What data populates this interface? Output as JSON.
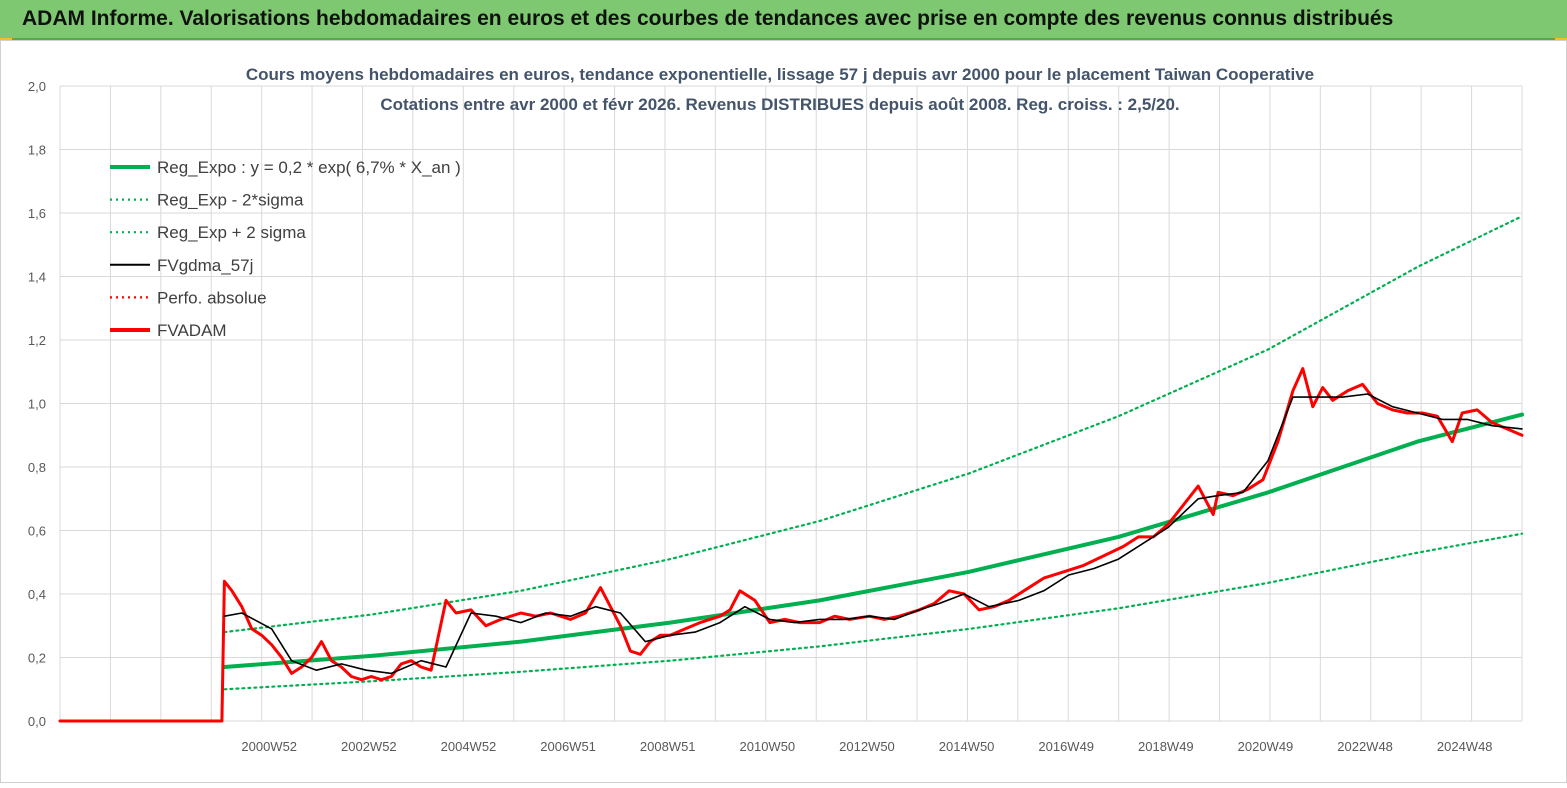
{
  "header": {
    "title": "ADAM Informe. Valorisations hebdomadaires en euros et des courbes de tendances avec prise en compte des revenus connus distribués"
  },
  "colors": {
    "header_bg": "#7dc870",
    "trend": "#00b050",
    "envelope": "#00b050",
    "smoothed": "#000000",
    "perf": "#ff0000",
    "fvadam": "#ff0000",
    "grid": "#d9d9d9"
  },
  "chart_data": {
    "type": "line",
    "title_line1": "Cours moyens hebdomadaires en euros, tendance exponentielle, lissage 57 j depuis avr 2000 pour le placement Taiwan Cooperative",
    "title_line2": "Cotations entre avr 2000 et févr 2026. Revenus DISTRIBUES depuis août 2008. Reg. croiss. : 2,5/20.",
    "xlabel": "",
    "ylabel": "",
    "ylim": [
      0,
      2.0
    ],
    "y_ticks": [
      "0,0",
      "0,2",
      "0,4",
      "0,6",
      "0,8",
      "1,0",
      "1,2",
      "1,4",
      "1,6",
      "1,8",
      "2,0"
    ],
    "x_ticks": [
      "2000W52",
      "2002W52",
      "2004W52",
      "2006W51",
      "2008W51",
      "2010W50",
      "2012W50",
      "2014W50",
      "2016W49",
      "2018W49",
      "2020W49",
      "2022W48",
      "2024W48"
    ],
    "x_range_years": [
      1996.75,
      2026.1
    ],
    "grid": true,
    "legend_position": "top-left",
    "legend": [
      {
        "label": "Reg_Expo : y = 0,2 * exp( 6,7% *  X_an )",
        "style": "solid-thick",
        "color": "#00b050"
      },
      {
        "label": "Reg_Exp - 2*sigma",
        "style": "dotted",
        "color": "#00b050"
      },
      {
        "label": "Reg_Exp + 2 sigma",
        "style": "dotted",
        "color": "#00b050"
      },
      {
        "label": "FVgdma_57j",
        "style": "solid",
        "color": "#000000"
      },
      {
        "label": "Perfo. absolue",
        "style": "dotted",
        "color": "#ff0000"
      },
      {
        "label": "FVADAM",
        "style": "solid-thick",
        "color": "#ff0000"
      }
    ],
    "series": [
      {
        "name": "Reg_Expo : y = 0,2 * exp( 6,7% *  X_an )",
        "x": [
          2000.05,
          2003,
          2006,
          2009,
          2012,
          2015,
          2018,
          2021,
          2024,
          2026.1
        ],
        "values": [
          0.17,
          0.205,
          0.25,
          0.31,
          0.38,
          0.47,
          0.58,
          0.72,
          0.88,
          0.965
        ]
      },
      {
        "name": "Reg_Exp - 2*sigma",
        "x": [
          2000.05,
          2003,
          2006,
          2009,
          2012,
          2015,
          2018,
          2021,
          2024,
          2026.1
        ],
        "values": [
          0.1,
          0.125,
          0.155,
          0.19,
          0.235,
          0.29,
          0.355,
          0.435,
          0.53,
          0.59
        ]
      },
      {
        "name": "Reg_Exp + 2 sigma",
        "x": [
          2000.05,
          2003,
          2006,
          2009,
          2012,
          2015,
          2018,
          2021,
          2024,
          2026.1
        ],
        "values": [
          0.28,
          0.335,
          0.41,
          0.51,
          0.63,
          0.78,
          0.96,
          1.17,
          1.43,
          1.59
        ]
      },
      {
        "name": "FVgdma_57j",
        "x": [
          2000.05,
          2000.4,
          2001.0,
          2001.4,
          2001.9,
          2002.4,
          2002.9,
          2003.4,
          2004.0,
          2004.5,
          2005.0,
          2005.5,
          2006.0,
          2006.5,
          2007.0,
          2007.5,
          2008.0,
          2008.5,
          2009.0,
          2009.5,
          2010.0,
          2010.5,
          2011.0,
          2011.5,
          2012.0,
          2012.5,
          2013.0,
          2013.5,
          2014.0,
          2014.4,
          2014.9,
          2015.4,
          2016.0,
          2016.5,
          2017.0,
          2017.5,
          2018.0,
          2018.5,
          2019.0,
          2019.6,
          2020.0,
          2020.5,
          2021.0,
          2021.5,
          2022.0,
          2022.5,
          2023.0,
          2023.5,
          2024.0,
          2024.5,
          2025.0,
          2025.5,
          2026.1
        ],
        "values": [
          0.33,
          0.34,
          0.29,
          0.19,
          0.16,
          0.18,
          0.16,
          0.15,
          0.19,
          0.17,
          0.34,
          0.33,
          0.31,
          0.34,
          0.33,
          0.36,
          0.34,
          0.25,
          0.27,
          0.28,
          0.31,
          0.36,
          0.32,
          0.31,
          0.32,
          0.32,
          0.33,
          0.32,
          0.35,
          0.37,
          0.4,
          0.36,
          0.38,
          0.41,
          0.46,
          0.48,
          0.51,
          0.56,
          0.61,
          0.7,
          0.71,
          0.72,
          0.82,
          1.02,
          1.02,
          1.02,
          1.03,
          0.99,
          0.97,
          0.95,
          0.95,
          0.93,
          0.92
        ]
      },
      {
        "name": "FVADAM",
        "x": [
          1996.75,
          2000.0,
          2000.05,
          2000.2,
          2000.4,
          2000.6,
          2000.8,
          2001.0,
          2001.2,
          2001.4,
          2001.6,
          2001.8,
          2002.0,
          2002.2,
          2002.4,
          2002.6,
          2002.8,
          2003.0,
          2003.2,
          2003.4,
          2003.6,
          2003.8,
          2004.0,
          2004.2,
          2004.5,
          2004.7,
          2005.0,
          2005.3,
          2005.6,
          2006.0,
          2006.3,
          2006.6,
          2007.0,
          2007.3,
          2007.6,
          2008.0,
          2008.2,
          2008.4,
          2008.6,
          2008.8,
          2009.0,
          2009.3,
          2009.6,
          2010.0,
          2010.2,
          2010.4,
          2010.7,
          2011.0,
          2011.3,
          2011.6,
          2012.0,
          2012.3,
          2012.6,
          2013.0,
          2013.3,
          2013.6,
          2014.0,
          2014.3,
          2014.6,
          2014.9,
          2015.2,
          2015.5,
          2015.8,
          2016.1,
          2016.5,
          2016.9,
          2017.3,
          2017.7,
          2018.1,
          2018.4,
          2018.7,
          2019.0,
          2019.3,
          2019.6,
          2019.9,
          2020.0,
          2020.3,
          2020.6,
          2020.9,
          2021.2,
          2021.5,
          2021.7,
          2021.9,
          2022.1,
          2022.3,
          2022.6,
          2022.9,
          2023.2,
          2023.5,
          2023.8,
          2024.1,
          2024.4,
          2024.7,
          2024.9,
          2025.2,
          2025.5,
          2025.8,
          2026.1
        ],
        "values": [
          0.0,
          0.0,
          0.44,
          0.41,
          0.36,
          0.29,
          0.27,
          0.24,
          0.2,
          0.15,
          0.17,
          0.2,
          0.25,
          0.19,
          0.17,
          0.14,
          0.13,
          0.14,
          0.13,
          0.14,
          0.18,
          0.19,
          0.17,
          0.16,
          0.38,
          0.34,
          0.35,
          0.3,
          0.32,
          0.34,
          0.33,
          0.34,
          0.32,
          0.34,
          0.42,
          0.3,
          0.22,
          0.21,
          0.25,
          0.27,
          0.27,
          0.29,
          0.31,
          0.33,
          0.35,
          0.41,
          0.38,
          0.31,
          0.32,
          0.31,
          0.31,
          0.33,
          0.32,
          0.33,
          0.32,
          0.33,
          0.35,
          0.37,
          0.41,
          0.4,
          0.35,
          0.36,
          0.38,
          0.41,
          0.45,
          0.47,
          0.49,
          0.52,
          0.55,
          0.58,
          0.58,
          0.62,
          0.68,
          0.74,
          0.65,
          0.72,
          0.71,
          0.73,
          0.76,
          0.88,
          1.04,
          1.11,
          0.99,
          1.05,
          1.01,
          1.04,
          1.06,
          1.0,
          0.98,
          0.97,
          0.97,
          0.96,
          0.88,
          0.97,
          0.98,
          0.94,
          0.92,
          0.9
        ]
      },
      {
        "name": "Perfo. absolue",
        "x": [
          1996.75,
          2000.0
        ],
        "values": [
          0.0,
          0.0
        ]
      }
    ]
  }
}
